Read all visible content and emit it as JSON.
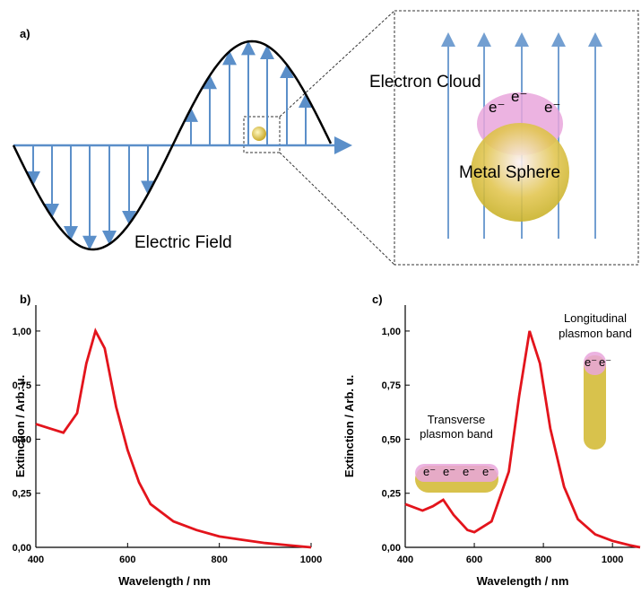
{
  "panel_a": {
    "label": "a)",
    "electron_cloud": "Electron Cloud",
    "metal_sphere": "Metal Sphere",
    "electric_field": "Electric Field",
    "electron": "e⁻"
  },
  "chart_data": [
    {
      "type": "line",
      "panel_label": "b)",
      "xlabel": "Wavelength / nm",
      "ylabel": "Extinction / Arb. u.",
      "color": "#e3141c",
      "x": [
        400,
        430,
        460,
        490,
        510,
        530,
        550,
        575,
        600,
        625,
        650,
        700,
        750,
        800,
        850,
        900,
        950,
        1000
      ],
      "values": [
        0.57,
        0.55,
        0.53,
        0.62,
        0.85,
        1.0,
        0.92,
        0.65,
        0.45,
        0.3,
        0.2,
        0.12,
        0.08,
        0.05,
        0.035,
        0.02,
        0.01,
        0.0
      ],
      "xlim": [
        400,
        1000
      ],
      "ylim": [
        0,
        1.12
      ],
      "xticks": [
        400,
        600,
        800,
        1000
      ],
      "yticks": [
        {
          "value": 0,
          "label": "0,00"
        },
        {
          "value": 0.25,
          "label": "0,25"
        },
        {
          "value": 0.5,
          "label": "0,50"
        },
        {
          "value": 0.75,
          "label": "0,75"
        },
        {
          "value": 1,
          "label": "1,00"
        }
      ]
    },
    {
      "type": "line",
      "panel_label": "c)",
      "xlabel": "Wavelength / nm",
      "ylabel": "Extinction / Arb. u.",
      "color": "#e3141c",
      "x": [
        400,
        450,
        480,
        510,
        540,
        580,
        600,
        650,
        700,
        730,
        760,
        790,
        820,
        860,
        900,
        950,
        1000,
        1050,
        1080
      ],
      "values": [
        0.2,
        0.17,
        0.19,
        0.22,
        0.15,
        0.08,
        0.07,
        0.12,
        0.35,
        0.7,
        1.0,
        0.85,
        0.55,
        0.28,
        0.13,
        0.06,
        0.03,
        0.01,
        0.0
      ],
      "xlim": [
        400,
        1080
      ],
      "ylim": [
        0,
        1.12
      ],
      "xticks": [
        400,
        600,
        800,
        1000
      ],
      "yticks": [
        {
          "value": 0,
          "label": "0,00"
        },
        {
          "value": 0.25,
          "label": "0,25"
        },
        {
          "value": 0.5,
          "label": "0,50"
        },
        {
          "value": 0.75,
          "label": "0,75"
        },
        {
          "value": 1,
          "label": "1,00"
        }
      ],
      "annotations": {
        "transverse": [
          "Transverse",
          "plasmon band"
        ],
        "longitudinal": [
          "Longitudinal",
          "plasmon band"
        ],
        "electron": "e⁻"
      }
    }
  ]
}
